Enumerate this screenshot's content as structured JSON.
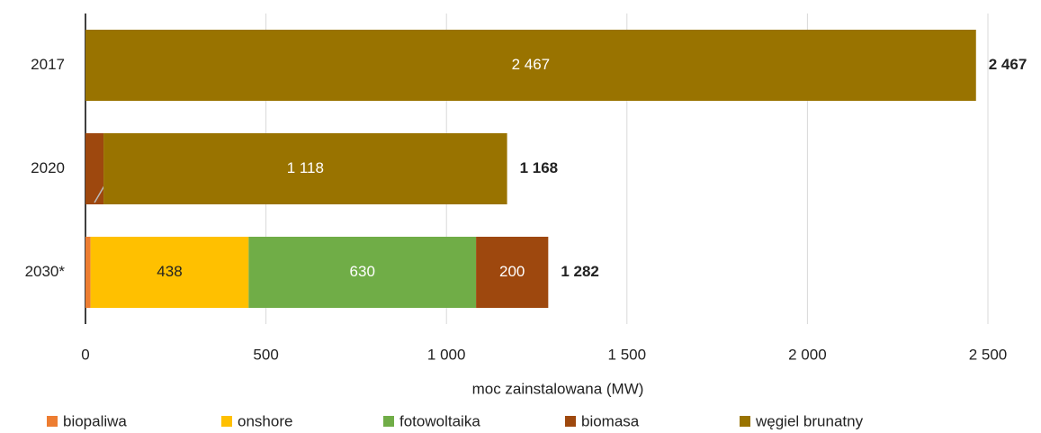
{
  "chart_data": {
    "type": "stacked_barh",
    "categories": [
      "2017",
      "2020",
      "2030*"
    ],
    "series": [
      {
        "name": "biopaliwa",
        "color": "#ed7d31",
        "values": [
          null,
          null,
          14
        ],
        "value_labels": [
          null,
          null,
          null
        ]
      },
      {
        "name": "onshore",
        "color": "#ffc000",
        "values": [
          null,
          null,
          438
        ],
        "value_labels": [
          null,
          null,
          "438"
        ]
      },
      {
        "name": "fotowoltaika",
        "color": "#70ad47",
        "values": [
          null,
          null,
          630
        ],
        "value_labels": [
          null,
          null,
          "630"
        ]
      },
      {
        "name": "biomasa",
        "color": "#9e480e",
        "values": [
          null,
          50,
          200
        ],
        "value_labels": [
          null,
          "50",
          "200"
        ]
      },
      {
        "name": "węgiel brunatny",
        "color": "#997300",
        "values": [
          2467,
          1118,
          null
        ],
        "value_labels": [
          "2 467",
          "1 118",
          null
        ]
      }
    ],
    "totals": [
      2467,
      1168,
      1282
    ],
    "total_labels": [
      "2 467",
      "1 168",
      "1 282"
    ],
    "xlabel": "moc zainstalowana (MW)",
    "xlim": [
      0,
      2500
    ],
    "xticks": [
      0,
      500,
      {
        "value": 1000,
        "label": "1 000"
      },
      {
        "value": 1500,
        "label": "1 500"
      },
      {
        "value": 2000,
        "label": "2 000"
      },
      {
        "value": 2500,
        "label": "2 500"
      }
    ],
    "grid": true,
    "legend": "bottom"
  }
}
